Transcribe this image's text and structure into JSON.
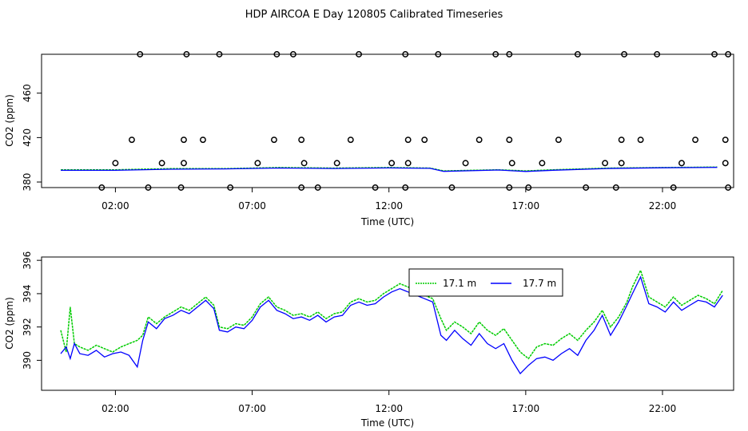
{
  "title": "HDP AIRCOA E  Day 120805  Calibrated Timeseries",
  "chart_data": [
    {
      "type": "scatter",
      "xlabel": "Time (UTC)",
      "ylabel": "CO2 (ppm)",
      "xlim": [
        -0.7,
        24.6
      ],
      "ylim": [
        375,
        495
      ],
      "x_ticks": [
        2,
        7,
        12,
        17,
        22
      ],
      "x_tick_labels": [
        "02:00",
        "07:00",
        "12:00",
        "17:00",
        "22:00"
      ],
      "y_ticks": [
        380,
        420,
        460
      ],
      "y_tick_labels": [
        "380",
        "420",
        "460"
      ],
      "points": [
        {
          "x": 1.5,
          "y": 375
        },
        {
          "x": 3.2,
          "y": 375
        },
        {
          "x": 4.4,
          "y": 375
        },
        {
          "x": 6.2,
          "y": 375
        },
        {
          "x": 8.8,
          "y": 375
        },
        {
          "x": 9.4,
          "y": 375
        },
        {
          "x": 11.5,
          "y": 375
        },
        {
          "x": 12.6,
          "y": 375
        },
        {
          "x": 14.3,
          "y": 375
        },
        {
          "x": 16.4,
          "y": 375
        },
        {
          "x": 17.1,
          "y": 375
        },
        {
          "x": 19.2,
          "y": 375
        },
        {
          "x": 20.3,
          "y": 375
        },
        {
          "x": 22.4,
          "y": 375
        },
        {
          "x": 24.4,
          "y": 375
        },
        {
          "x": 2.0,
          "y": 397
        },
        {
          "x": 3.7,
          "y": 397
        },
        {
          "x": 4.5,
          "y": 397
        },
        {
          "x": 7.2,
          "y": 397
        },
        {
          "x": 8.9,
          "y": 397
        },
        {
          "x": 10.1,
          "y": 397
        },
        {
          "x": 12.1,
          "y": 397
        },
        {
          "x": 12.7,
          "y": 397
        },
        {
          "x": 14.8,
          "y": 397
        },
        {
          "x": 16.5,
          "y": 397
        },
        {
          "x": 17.6,
          "y": 397
        },
        {
          "x": 19.9,
          "y": 397
        },
        {
          "x": 20.5,
          "y": 397
        },
        {
          "x": 22.7,
          "y": 397
        },
        {
          "x": 24.3,
          "y": 397
        },
        {
          "x": 2.6,
          "y": 418
        },
        {
          "x": 4.5,
          "y": 418
        },
        {
          "x": 5.2,
          "y": 418
        },
        {
          "x": 7.8,
          "y": 418
        },
        {
          "x": 8.8,
          "y": 418
        },
        {
          "x": 10.6,
          "y": 418
        },
        {
          "x": 12.7,
          "y": 418
        },
        {
          "x": 13.3,
          "y": 418
        },
        {
          "x": 15.3,
          "y": 418
        },
        {
          "x": 16.4,
          "y": 418
        },
        {
          "x": 18.2,
          "y": 418
        },
        {
          "x": 20.5,
          "y": 418
        },
        {
          "x": 21.2,
          "y": 418
        },
        {
          "x": 23.2,
          "y": 418
        },
        {
          "x": 24.3,
          "y": 418
        },
        {
          "x": 2.9,
          "y": 495
        },
        {
          "x": 4.6,
          "y": 495
        },
        {
          "x": 5.8,
          "y": 495
        },
        {
          "x": 7.9,
          "y": 495
        },
        {
          "x": 8.5,
          "y": 495
        },
        {
          "x": 10.9,
          "y": 495
        },
        {
          "x": 12.6,
          "y": 495
        },
        {
          "x": 13.8,
          "y": 495
        },
        {
          "x": 15.9,
          "y": 495
        },
        {
          "x": 16.4,
          "y": 495
        },
        {
          "x": 18.9,
          "y": 495
        },
        {
          "x": 20.6,
          "y": 495
        },
        {
          "x": 21.8,
          "y": 495
        },
        {
          "x": 23.9,
          "y": 495
        },
        {
          "x": 24.4,
          "y": 495
        }
      ],
      "series": [
        {
          "name": "17.1 m",
          "color": "#00cc00",
          "x": [
            0,
            2,
            4,
            6,
            8,
            10,
            12,
            13.5,
            14,
            16,
            17,
            18,
            20,
            22,
            24
          ],
          "y": [
            391,
            391,
            392,
            392,
            393,
            392.5,
            393,
            392.5,
            390,
            391,
            390,
            391,
            392.5,
            393,
            393.5
          ]
        },
        {
          "name": "17.7 m",
          "color": "#0000ff",
          "x": [
            0,
            2,
            4,
            6,
            8,
            10,
            12,
            13.5,
            14,
            16,
            17,
            18,
            20,
            22,
            24
          ],
          "y": [
            390.5,
            390.5,
            391.5,
            391.8,
            392.6,
            392.2,
            392.7,
            392.3,
            389.6,
            390.8,
            389.5,
            390.6,
            392.2,
            392.8,
            393.2
          ]
        }
      ]
    },
    {
      "type": "line",
      "xlabel": "Time (UTC)",
      "ylabel": "CO2 (ppm)",
      "xlim": [
        -0.7,
        24.6
      ],
      "ylim": [
        388.2,
        396.2
      ],
      "x_ticks": [
        2,
        7,
        12,
        17,
        22
      ],
      "x_tick_labels": [
        "02:00",
        "07:00",
        "12:00",
        "17:00",
        "22:00"
      ],
      "y_ticks": [
        390,
        392,
        394,
        396
      ],
      "y_tick_labels": [
        "390",
        "392",
        "394",
        "396"
      ],
      "legend": "top-center",
      "series": [
        {
          "name": "17.1 m",
          "color": "#00cc00",
          "x": [
            0,
            0.2,
            0.35,
            0.5,
            0.7,
            1.0,
            1.3,
            1.6,
            1.9,
            2.2,
            2.5,
            2.8,
            3.0,
            3.2,
            3.5,
            3.8,
            4.1,
            4.4,
            4.7,
            5.0,
            5.3,
            5.6,
            5.8,
            6.1,
            6.4,
            6.7,
            7.0,
            7.3,
            7.6,
            7.9,
            8.2,
            8.5,
            8.8,
            9.1,
            9.4,
            9.7,
            10.0,
            10.3,
            10.6,
            10.9,
            11.2,
            11.5,
            11.8,
            12.1,
            12.4,
            12.7,
            13.0,
            13.3,
            13.6,
            13.9,
            14.1,
            14.4,
            14.7,
            15.0,
            15.3,
            15.6,
            15.9,
            16.2,
            16.5,
            16.8,
            17.1,
            17.4,
            17.7,
            18.0,
            18.3,
            18.6,
            18.9,
            19.2,
            19.5,
            19.8,
            20.1,
            20.4,
            20.7,
            20.9,
            21.2,
            21.5,
            21.8,
            22.1,
            22.4,
            22.7,
            23.0,
            23.3,
            23.6,
            23.9,
            24.2
          ],
          "y": [
            391.8,
            390.5,
            393.2,
            391.0,
            390.8,
            390.6,
            390.9,
            390.7,
            390.5,
            390.8,
            391.0,
            391.2,
            391.5,
            392.6,
            392.2,
            392.6,
            392.9,
            393.2,
            393.0,
            393.4,
            393.8,
            393.3,
            392.0,
            391.9,
            392.2,
            392.1,
            392.6,
            393.4,
            393.8,
            393.2,
            393.0,
            392.7,
            392.8,
            392.6,
            392.9,
            392.5,
            392.8,
            392.9,
            393.5,
            393.7,
            393.5,
            393.6,
            394.0,
            394.3,
            394.6,
            394.4,
            394.1,
            393.9,
            393.7,
            392.5,
            391.8,
            392.3,
            392.0,
            391.6,
            392.3,
            391.8,
            391.5,
            391.9,
            391.2,
            390.5,
            390.1,
            390.8,
            391.0,
            390.9,
            391.3,
            391.6,
            391.2,
            391.8,
            392.3,
            393.0,
            392.0,
            392.6,
            393.5,
            394.4,
            395.4,
            393.8,
            393.5,
            393.2,
            393.8,
            393.3,
            393.6,
            393.9,
            393.7,
            393.4,
            394.2
          ]
        },
        {
          "name": "17.7 m",
          "color": "#0000ff",
          "x": [
            0,
            0.2,
            0.35,
            0.5,
            0.7,
            1.0,
            1.3,
            1.6,
            1.9,
            2.2,
            2.5,
            2.8,
            3.0,
            3.2,
            3.5,
            3.8,
            4.1,
            4.4,
            4.7,
            5.0,
            5.3,
            5.6,
            5.8,
            6.1,
            6.4,
            6.7,
            7.0,
            7.3,
            7.6,
            7.9,
            8.2,
            8.5,
            8.8,
            9.1,
            9.4,
            9.7,
            10.0,
            10.3,
            10.6,
            10.9,
            11.2,
            11.5,
            11.8,
            12.1,
            12.4,
            12.7,
            13.0,
            13.3,
            13.6,
            13.9,
            14.1,
            14.4,
            14.7,
            15.0,
            15.3,
            15.6,
            15.9,
            16.2,
            16.5,
            16.8,
            17.1,
            17.4,
            17.7,
            18.0,
            18.3,
            18.6,
            18.9,
            19.2,
            19.5,
            19.8,
            20.1,
            20.4,
            20.7,
            20.9,
            21.2,
            21.5,
            21.8,
            22.1,
            22.4,
            22.7,
            23.0,
            23.3,
            23.6,
            23.9,
            24.2
          ],
          "y": [
            390.4,
            390.8,
            390.1,
            391.0,
            390.4,
            390.3,
            390.6,
            390.2,
            390.4,
            390.5,
            390.3,
            389.6,
            391.2,
            392.3,
            391.9,
            392.5,
            392.7,
            393.0,
            392.8,
            393.2,
            393.6,
            393.1,
            391.8,
            391.7,
            392.0,
            391.9,
            392.4,
            393.2,
            393.6,
            393.0,
            392.8,
            392.5,
            392.6,
            392.4,
            392.7,
            392.3,
            392.6,
            392.7,
            393.3,
            393.5,
            393.3,
            393.4,
            393.8,
            394.1,
            394.3,
            394.1,
            393.9,
            393.7,
            393.5,
            391.5,
            391.2,
            391.8,
            391.3,
            390.9,
            391.6,
            391.0,
            390.7,
            391.0,
            390.0,
            389.2,
            389.7,
            390.1,
            390.2,
            390.0,
            390.4,
            390.7,
            390.3,
            391.2,
            391.8,
            392.7,
            391.5,
            392.3,
            393.3,
            394.0,
            395.0,
            393.4,
            393.2,
            392.9,
            393.5,
            393.0,
            393.3,
            393.6,
            393.5,
            393.2,
            393.9
          ]
        }
      ]
    }
  ]
}
